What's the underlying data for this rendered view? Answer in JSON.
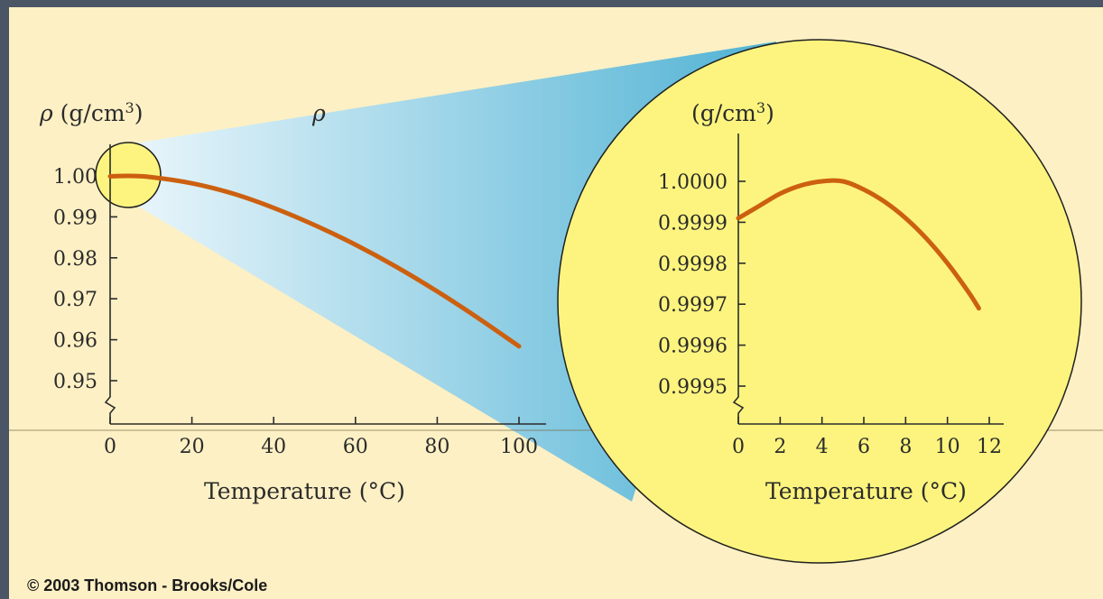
{
  "credit": "© 2003 Thomson - Brooks/Cole",
  "colors": {
    "background": "#fdf0c4",
    "curve": "#cc6010",
    "zoom_circle": "#fcf47e",
    "zoom_beam": "#5bb7d6"
  },
  "annotations": {
    "beam_label": "ρ"
  },
  "chart_data": [
    {
      "type": "line",
      "title": "",
      "ylabel_symbol": "ρ",
      "ylabel_unit": "(g/cm",
      "ylabel_exp": "3",
      "ylabel_close": ")",
      "xlabel": "Temperature (°C)",
      "xlim": [
        0,
        100
      ],
      "ylim": [
        0.94,
        1.005
      ],
      "axis_break": true,
      "grid": false,
      "x_ticks": [
        0,
        20,
        40,
        60,
        80,
        100
      ],
      "x_tick_labels": [
        "0",
        "20",
        "40",
        "60",
        "80",
        "100"
      ],
      "y_ticks": [
        0.95,
        0.96,
        0.97,
        0.98,
        0.99,
        1.0
      ],
      "y_tick_labels": [
        "0.95",
        "0.96",
        "0.97",
        "0.98",
        "0.99",
        "1.00"
      ],
      "series": [
        {
          "x": [
            0,
            4,
            10,
            20,
            30,
            40,
            50,
            60,
            70,
            80,
            90,
            100
          ],
          "y": [
            0.9999,
            1.0,
            0.9997,
            0.9982,
            0.9957,
            0.9922,
            0.988,
            0.9832,
            0.9778,
            0.9718,
            0.9653,
            0.9584
          ]
        }
      ]
    },
    {
      "type": "line",
      "title": "",
      "ylabel_unit": "(g/cm",
      "ylabel_exp": "3",
      "ylabel_close": ")",
      "xlabel": "Temperature (°C)",
      "xlim": [
        0,
        12
      ],
      "ylim": [
        0.99945,
        1.0002
      ],
      "axis_break": true,
      "grid": false,
      "x_ticks": [
        0,
        2,
        4,
        6,
        8,
        10,
        12
      ],
      "x_tick_labels": [
        "0",
        "2",
        "4",
        "6",
        "8",
        "10",
        "12"
      ],
      "y_ticks": [
        0.9995,
        0.9996,
        0.9997,
        0.9998,
        0.9999,
        1.0
      ],
      "y_tick_labels": [
        "0.9995",
        "0.9996",
        "0.9997",
        "0.9998",
        "0.9999",
        "1.0000"
      ],
      "series": [
        {
          "x": [
            0,
            1,
            2,
            3,
            4,
            5,
            6,
            7,
            8,
            9,
            10,
            11,
            11.5
          ],
          "y": [
            0.99991,
            0.99994,
            0.99997,
            0.99999,
            1.0,
            1.0,
            0.99998,
            0.99995,
            0.99991,
            0.99986,
            0.9998,
            0.99973,
            0.99969
          ]
        }
      ]
    }
  ]
}
